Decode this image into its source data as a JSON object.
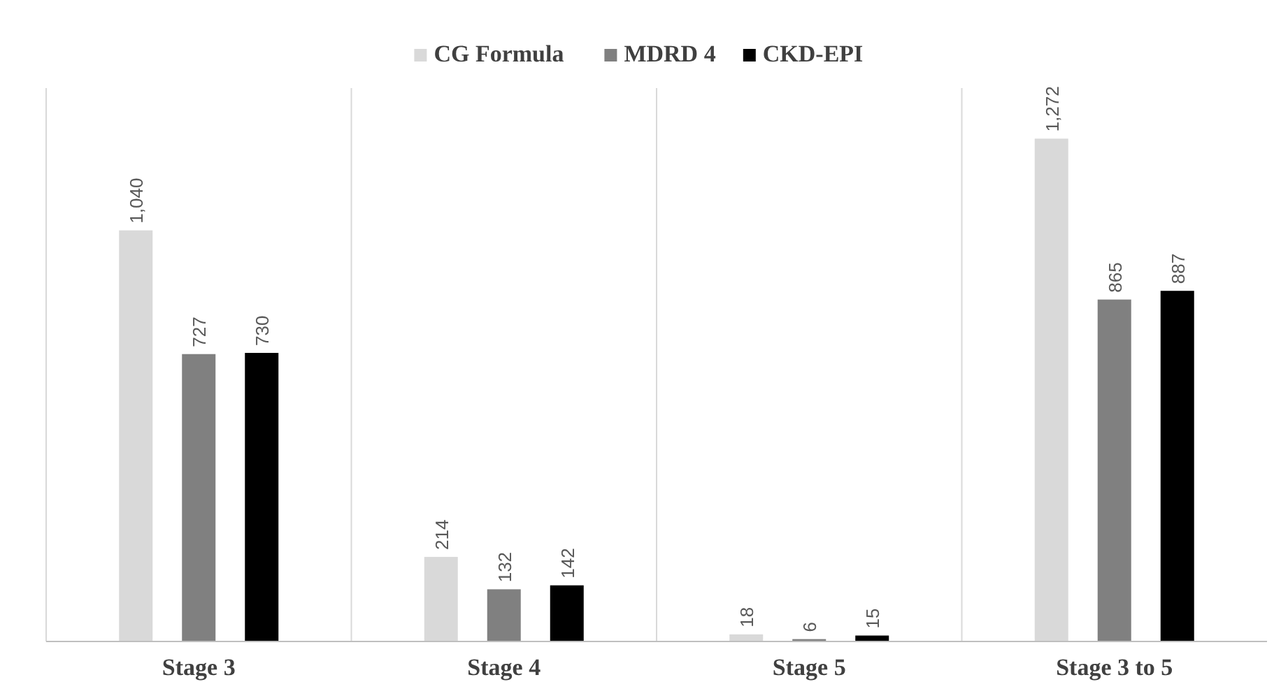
{
  "chart_data": {
    "type": "bar",
    "categories": [
      "Stage 3",
      "Stage 4",
      "Stage 5",
      "Stage 3 to 5"
    ],
    "series": [
      {
        "name": "CG Formula",
        "color": "#d9d9d9",
        "values": [
          1040,
          214,
          18,
          1272
        ],
        "value_labels": [
          "1,040",
          "214",
          "18",
          "1,272"
        ]
      },
      {
        "name": "MDRD 4",
        "color": "#808080",
        "values": [
          727,
          132,
          6,
          865
        ],
        "value_labels": [
          "727",
          "132",
          "6",
          "865"
        ]
      },
      {
        "name": "CKD-EPI",
        "color": "#000000",
        "values": [
          730,
          142,
          15,
          887
        ],
        "value_labels": [
          "730",
          "142",
          "15",
          "887"
        ]
      }
    ],
    "ylim": [
      0,
      1400
    ],
    "tick_labels": "x",
    "grid": "x",
    "legend": "top"
  }
}
